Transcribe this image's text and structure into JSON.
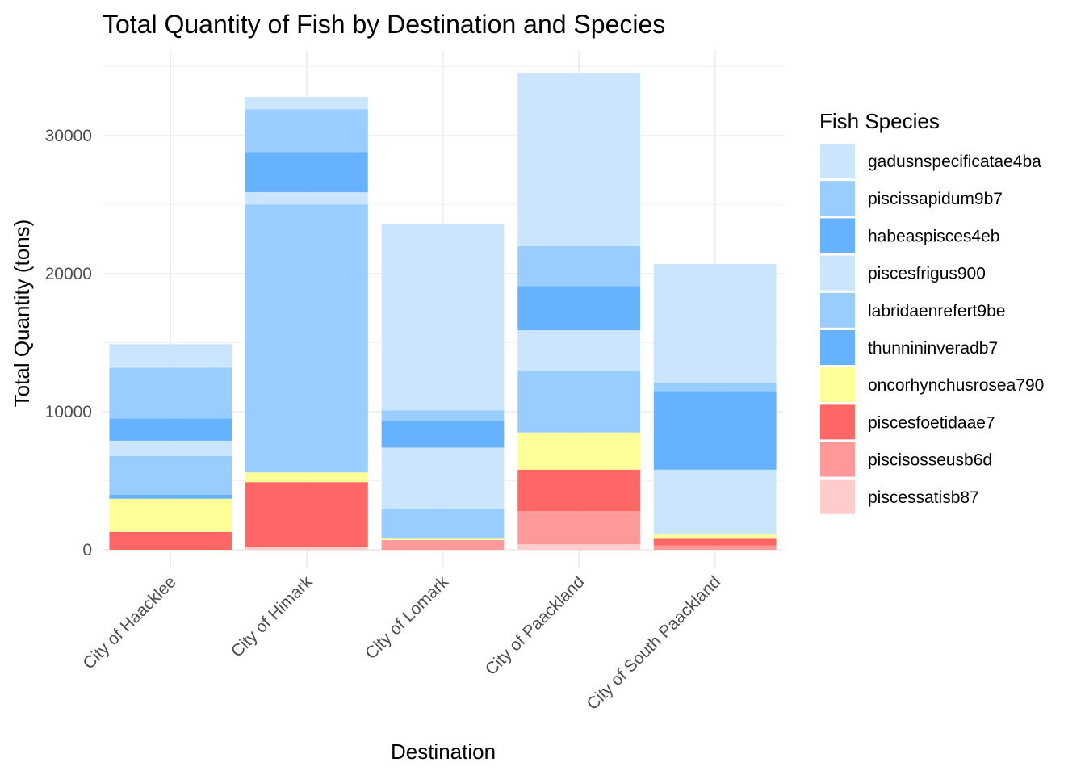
{
  "chart_data": {
    "type": "bar",
    "stacked": true,
    "title": "Total Quantity of Fish by Destination and Species",
    "xlabel": "Destination",
    "ylabel": "Total Quantity (tons)",
    "ylim": [
      0,
      35000
    ],
    "yticks": [
      0,
      10000,
      20000,
      30000
    ],
    "grid": true,
    "legend_title": "Fish Species",
    "legend_position": "right",
    "categories": [
      "City of Haacklee",
      "City of Himark",
      "City of Lomark",
      "City of Paackland",
      "City of South Paackland"
    ],
    "series": [
      {
        "name": "piscessatisb87",
        "color": "#ffcccc",
        "values": [
          0,
          200,
          0,
          400,
          0
        ]
      },
      {
        "name": "piscisosseusb6d",
        "color": "#ff9999",
        "values": [
          0,
          0,
          700,
          2400,
          300
        ]
      },
      {
        "name": "piscesfoetidaae7",
        "color": "#ff6666",
        "values": [
          1300,
          4700,
          0,
          3000,
          500
        ]
      },
      {
        "name": "oncorhynchusrosea790",
        "color": "#ffff99",
        "values": [
          2400,
          700,
          100,
          2700,
          300
        ]
      },
      {
        "name": "thunnininveradb7",
        "color": "#66b2ff",
        "values": [
          300,
          0,
          0,
          0,
          0
        ]
      },
      {
        "name": "labridaenrefert9be",
        "color": "#99ccff",
        "values": [
          2800,
          19400,
          2200,
          4500,
          0
        ]
      },
      {
        "name": "piscesfrigus900",
        "color": "#cce5ff",
        "values": [
          1100,
          900,
          4400,
          2900,
          4700
        ]
      },
      {
        "name": "habeaspisces4eb",
        "color": "#66b2ff",
        "values": [
          1600,
          2900,
          1900,
          3200,
          5700
        ]
      },
      {
        "name": "piscissapidum9b7",
        "color": "#99ccff",
        "values": [
          3700,
          3100,
          800,
          2900,
          600
        ]
      },
      {
        "name": "gadusnspecificatae4ba",
        "color": "#cce5ff",
        "values": [
          1700,
          900,
          13500,
          12500,
          8600
        ]
      }
    ],
    "legend_order": [
      "gadusnspecificatae4ba",
      "piscissapidum9b7",
      "habeaspisces4eb",
      "piscesfrigus900",
      "labridaenrefert9be",
      "thunnininveradb7",
      "oncorhynchusrosea790",
      "piscesfoetidaae7",
      "piscisosseusb6d",
      "piscessatisb87"
    ]
  }
}
